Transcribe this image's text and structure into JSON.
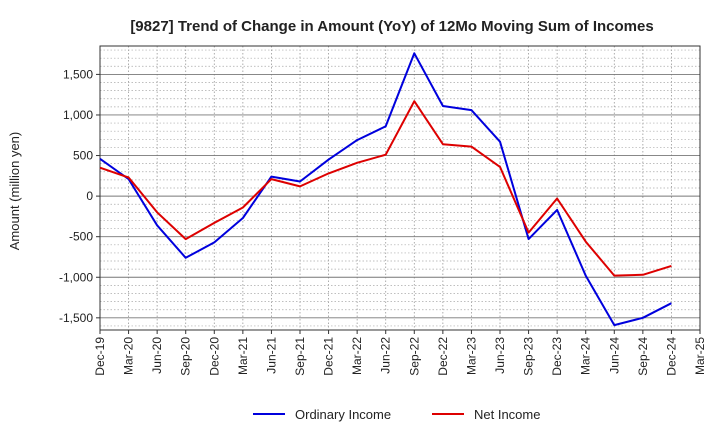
{
  "chart_data": {
    "type": "line",
    "title": "[9827]  Trend of Change in Amount (YoY) of 12Mo Moving Sum of Incomes",
    "ylabel": "Amount (million yen)",
    "xlabel": "",
    "ylim": [
      -1650,
      1850
    ],
    "yticks": [
      -1500,
      -1000,
      -500,
      0,
      500,
      1000,
      1500
    ],
    "ytick_labels": [
      "-1,500",
      "-1,000",
      "-500",
      "0",
      "500",
      "1,000",
      "1,500"
    ],
    "categories": [
      "Dec-19",
      "Mar-20",
      "Jun-20",
      "Sep-20",
      "Dec-20",
      "Mar-21",
      "Jun-21",
      "Sep-21",
      "Dec-21",
      "Mar-22",
      "Jun-22",
      "Sep-22",
      "Dec-22",
      "Mar-23",
      "Jun-23",
      "Sep-23",
      "Dec-23",
      "Mar-24",
      "Jun-24",
      "Sep-24",
      "Dec-24",
      "Mar-25"
    ],
    "grid": true,
    "legend_position": "bottom",
    "series": [
      {
        "name": "Ordinary Income",
        "color": "#0000dd",
        "values": [
          460,
          210,
          -360,
          -760,
          -570,
          -270,
          240,
          180,
          450,
          690,
          860,
          1760,
          1110,
          1060,
          670,
          -530,
          -170,
          -980,
          -1590,
          -1500,
          -1320,
          null
        ]
      },
      {
        "name": "Net Income",
        "color": "#dd0000",
        "values": [
          350,
          230,
          -200,
          -530,
          -330,
          -140,
          210,
          120,
          280,
          410,
          510,
          1170,
          640,
          610,
          360,
          -450,
          -30,
          -560,
          -980,
          -970,
          -860,
          null
        ]
      }
    ]
  }
}
